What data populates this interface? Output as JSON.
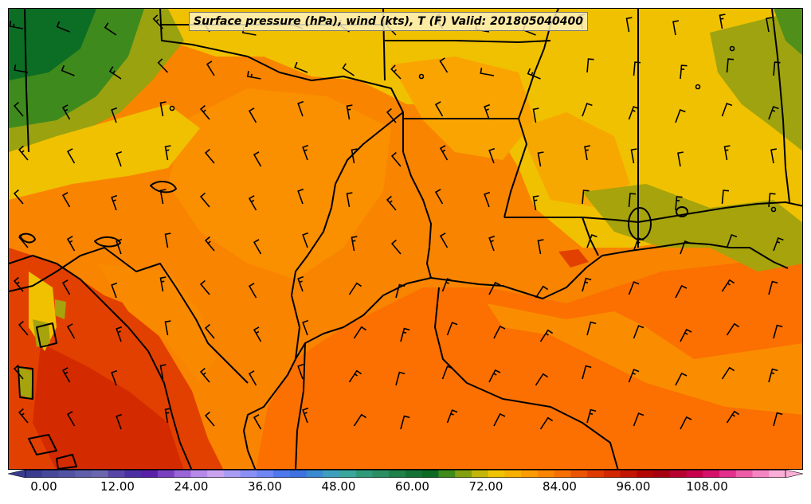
{
  "title": "Surface pressure (hPa), wind (kts), T (F) Valid: 201805040400",
  "colorbar": {
    "tick_labels": [
      "0.00",
      "12.00",
      "24.00",
      "36.00",
      "48.00",
      "60.00",
      "72.00",
      "84.00",
      "96.00",
      "108.00"
    ],
    "colors": [
      "#3a3d8f",
      "#47489a",
      "#5252a3",
      "#5e5eab",
      "#6a66ae",
      "#5944a8",
      "#4d2fa3",
      "#5a1fa8",
      "#7a3fc0",
      "#9a63d8",
      "#b688ea",
      "#c9a3f0",
      "#a99cf4",
      "#8a8ff5",
      "#6f86f5",
      "#4d78ee",
      "#3d72e0",
      "#3a8ad2",
      "#3d9fbd",
      "#3aa79d",
      "#2f9a7a",
      "#2a8e62",
      "#1f8048",
      "#157236",
      "#0c6a22",
      "#3e8b1a",
      "#83a00f",
      "#c3b608",
      "#f0c300",
      "#f7b000",
      "#fb9b00",
      "#fc8500",
      "#f96e00",
      "#ec5300",
      "#e03a00",
      "#d42600",
      "#c41500",
      "#b40600",
      "#a70010",
      "#b8002e",
      "#c9004c",
      "#d6106a",
      "#e3308c",
      "#ee5ca8",
      "#f585c2",
      "#faaed8"
    ]
  }
}
